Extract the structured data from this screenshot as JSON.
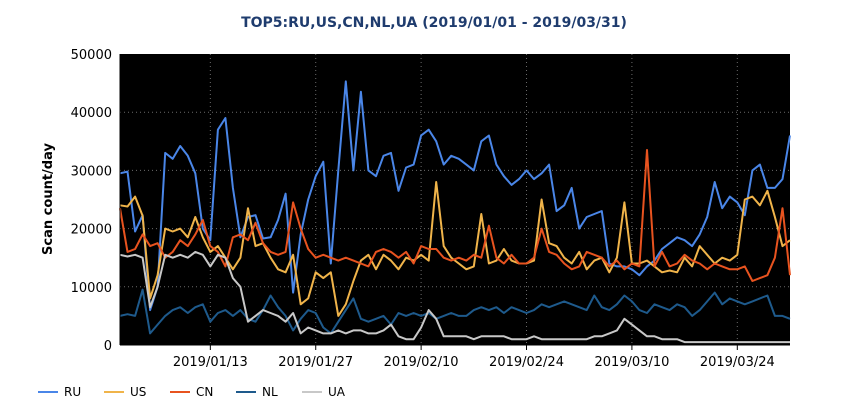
{
  "chart_data": {
    "type": "line",
    "title": "TOP5:RU,US,CN,NL,UA (2019/01/01 - 2019/03/31)",
    "ylabel": "Scan count/day",
    "ylim": [
      0,
      50000
    ],
    "yticks": [
      0,
      10000,
      20000,
      30000,
      40000,
      50000
    ],
    "xlim": [
      "2019-01-01",
      "2019-03-31"
    ],
    "xticks": [
      "2019/01/13",
      "2019/01/27",
      "2019/02/10",
      "2019/02/24",
      "2019/03/10",
      "2019/03/24"
    ],
    "start_date": "2019-01-01",
    "background": "#000000",
    "grid": true,
    "legend_position": "bottom",
    "series": [
      {
        "name": "RU",
        "color": "#4a86e8",
        "values": [
          29500,
          29800,
          19500,
          22300,
          6000,
          10000,
          33000,
          32000,
          34200,
          32500,
          29500,
          20000,
          18000,
          37000,
          39000,
          27000,
          18500,
          22000,
          22300,
          18300,
          18500,
          21500,
          26000,
          9000,
          19000,
          25000,
          29000,
          31500,
          14000,
          30000,
          45300,
          30000,
          43500,
          30000,
          29000,
          32500,
          33000,
          26500,
          30500,
          31000,
          36000,
          37000,
          35000,
          31000,
          32500,
          32000,
          31000,
          30000,
          35000,
          36000,
          31000,
          29000,
          27500,
          28500,
          30000,
          28500,
          29500,
          31000,
          23000,
          24000,
          27000,
          20000,
          22000,
          22500,
          23000,
          14000,
          13500,
          13500,
          13000,
          12000,
          13500,
          14500,
          16500,
          17500,
          18500,
          18000,
          17000,
          19000,
          22000,
          28000,
          23500,
          25500,
          24500,
          22300,
          30000,
          31000,
          27000,
          27000,
          28500,
          36000
        ]
      },
      {
        "name": "US",
        "color": "#f0b44a",
        "values": [
          24000,
          23800,
          25500,
          22200,
          8000,
          12000,
          20000,
          19500,
          20000,
          18500,
          22000,
          18500,
          16000,
          17000,
          15000,
          13000,
          15000,
          23500,
          17000,
          17500,
          15000,
          13000,
          12500,
          15500,
          7000,
          8000,
          12500,
          11500,
          12500,
          5000,
          7000,
          11000,
          14500,
          15500,
          13000,
          15500,
          14500,
          13000,
          15000,
          14500,
          15500,
          14500,
          28000,
          17000,
          15000,
          14000,
          13000,
          13500,
          22500,
          14000,
          14500,
          16500,
          14500,
          14000,
          14000,
          14500,
          25000,
          17500,
          17000,
          15000,
          14000,
          16000,
          13000,
          14500,
          15000,
          12500,
          15000,
          24500,
          14000,
          14000,
          14500,
          13500,
          12500,
          12800,
          12500,
          15000,
          13500,
          17000,
          15500,
          14000,
          15000,
          14500,
          15500,
          25000,
          25500,
          24000,
          26500,
          22000,
          17000,
          18000
        ]
      },
      {
        "name": "CN",
        "color": "#e8531f",
        "values": [
          23500,
          16000,
          16500,
          19000,
          17000,
          17500,
          15000,
          16000,
          18000,
          17000,
          19000,
          21500,
          17000,
          16000,
          13500,
          18500,
          19000,
          18000,
          21000,
          17500,
          16000,
          15500,
          16000,
          24500,
          20000,
          16500,
          15000,
          15500,
          15000,
          14500,
          15000,
          14500,
          14000,
          13500,
          16000,
          16500,
          16000,
          15000,
          16000,
          14000,
          17000,
          16500,
          16500,
          15000,
          14500,
          15000,
          14500,
          15500,
          15000,
          20500,
          15000,
          14000,
          15500,
          14000,
          14000,
          15000,
          20000,
          16000,
          15500,
          14000,
          13000,
          13500,
          16000,
          15500,
          15000,
          13500,
          14500,
          13000,
          14000,
          13500,
          33500,
          13500,
          16000,
          13500,
          14000,
          15500,
          14500,
          14000,
          13000,
          14000,
          13500,
          13000,
          13000,
          13500,
          11000,
          11500,
          12000,
          15000,
          23500,
          12000
        ]
      },
      {
        "name": "NL",
        "color": "#1e5a8c",
        "values": [
          5000,
          5300,
          5000,
          9500,
          2000,
          3500,
          5000,
          6000,
          6500,
          5500,
          6500,
          7000,
          4000,
          5500,
          6000,
          5000,
          6000,
          4500,
          4000,
          6000,
          8500,
          6500,
          5000,
          2500,
          4500,
          6000,
          5500,
          3000,
          2000,
          4000,
          6000,
          8000,
          4500,
          4000,
          4500,
          5000,
          3500,
          5500,
          5000,
          5500,
          5000,
          5500,
          4500,
          5000,
          5500,
          5000,
          5000,
          6000,
          6500,
          6000,
          6500,
          5500,
          6500,
          6000,
          5500,
          6000,
          7000,
          6500,
          7000,
          7500,
          7000,
          6500,
          6000,
          8500,
          6500,
          6000,
          7000,
          8500,
          7500,
          6000,
          5500,
          7000,
          6500,
          6000,
          7000,
          6500,
          5000,
          6000,
          7500,
          9000,
          7000,
          8000,
          7500,
          7000,
          7500,
          8000,
          8500,
          5000,
          5000,
          4500
        ]
      },
      {
        "name": "UA",
        "color": "#c8c8c8",
        "values": [
          15500,
          15200,
          15500,
          15000,
          6500,
          10000,
          15500,
          15000,
          15500,
          15000,
          16000,
          15500,
          13500,
          15500,
          15000,
          11500,
          10000,
          4000,
          5000,
          6000,
          5500,
          5000,
          4000,
          5500,
          2000,
          3000,
          2500,
          2000,
          2000,
          2500,
          2000,
          2500,
          2500,
          2000,
          2000,
          2500,
          3500,
          1500,
          1000,
          1000,
          3000,
          6000,
          4500,
          1500,
          1500,
          1500,
          1500,
          1000,
          1500,
          1500,
          1500,
          1500,
          1000,
          1000,
          1000,
          1500,
          1000,
          1000,
          1000,
          1000,
          1000,
          1000,
          1000,
          1500,
          1500,
          2000,
          2500,
          4500,
          3500,
          2500,
          1500,
          1500,
          1000,
          1000,
          1000,
          500,
          500,
          500,
          500,
          500,
          500,
          500,
          500,
          500,
          500,
          500,
          500,
          500,
          500,
          500
        ]
      }
    ]
  }
}
